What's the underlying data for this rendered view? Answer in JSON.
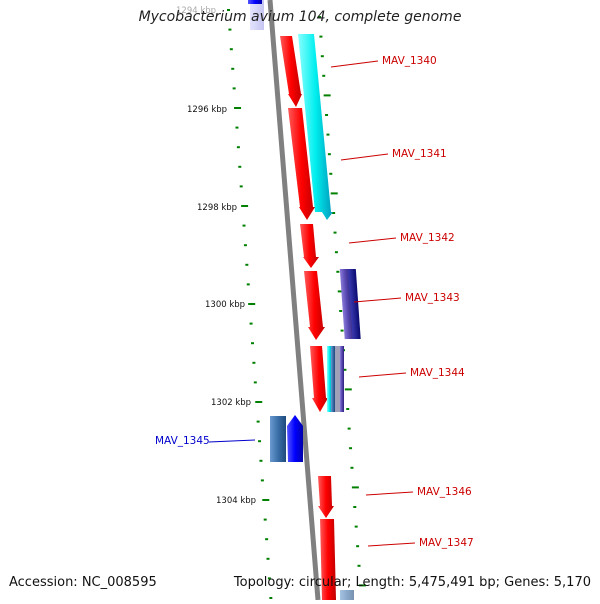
{
  "header": {
    "title": "Mycobacterium avium 104, complete genome"
  },
  "footer": {
    "accession": "Accession: NC_008595",
    "summary": "Topology: circular; Length: 5,475,491 bp; Genes: 5,170"
  },
  "colors": {
    "forward_gene": "#ff0000",
    "reverse_gene": "#0000ff",
    "cds_feature": "#00e5e5",
    "axis": "#808080",
    "tick": "#008000",
    "forward_label": "#cc0000",
    "reverse_label": "#0000cc"
  },
  "axis_labels": {
    "top_partial": "1294 kbp",
    "labels": [
      "1296 kbp",
      "1298 kbp",
      "1300 kbp",
      "1302 kbp",
      "1304 kbp"
    ]
  },
  "genes": [
    {
      "id": "MAV_1340",
      "strand": "+"
    },
    {
      "id": "MAV_1341",
      "strand": "+"
    },
    {
      "id": "MAV_1342",
      "strand": "+"
    },
    {
      "id": "MAV_1343",
      "strand": "+"
    },
    {
      "id": "MAV_1344",
      "strand": "+"
    },
    {
      "id": "MAV_1345",
      "strand": "-"
    },
    {
      "id": "MAV_1346",
      "strand": "+"
    },
    {
      "id": "MAV_1347",
      "strand": "+"
    }
  ]
}
